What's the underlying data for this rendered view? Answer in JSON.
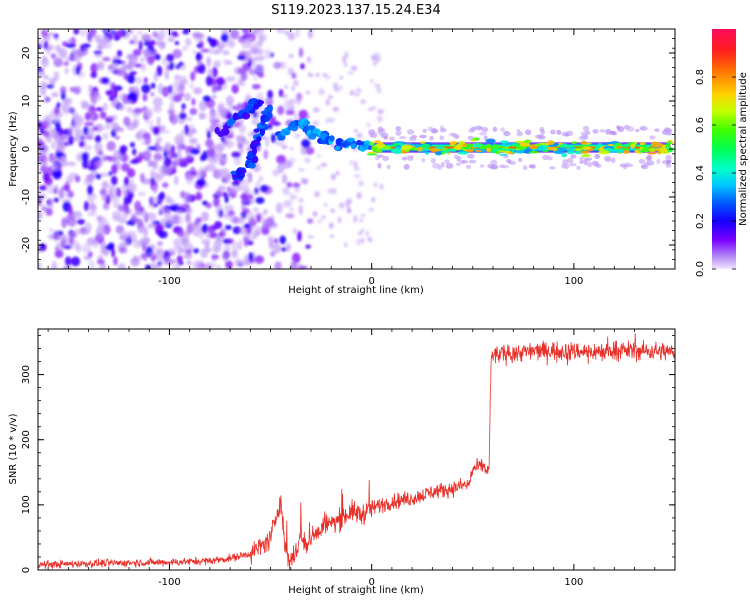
{
  "title": "S119.2023.137.15.24.E34",
  "colors": {
    "snr_line": "#e8302a",
    "spectro_bg": "#ffffff",
    "axis": "#000000"
  },
  "chart_data": [
    {
      "type": "heatmap",
      "name": "spectrogram",
      "xlabel": "Height of straight line (km)",
      "ylabel": "Frequency (Hz)",
      "xlim": [
        -165,
        150
      ],
      "ylim": [
        -25,
        25
      ],
      "xticks": [
        -100,
        0,
        100
      ],
      "yticks": [
        -20,
        -10,
        0,
        10,
        20
      ],
      "colorbar": {
        "label": "Normalized spectral amplitude",
        "range": [
          0,
          1
        ],
        "ticks": [
          "0.0",
          "0.2",
          "0.4",
          "0.6",
          "0.8"
        ],
        "colormap": "gist_rainbow_r"
      },
      "features": [
        {
          "kind": "noise",
          "x_range": [
            -165,
            -30
          ],
          "f_range": [
            -25,
            25
          ]
        },
        {
          "kind": "chirp_up",
          "points": [
            [
              -68,
              -6
            ],
            [
              -60,
              -3
            ],
            [
              -55,
              4
            ],
            [
              -50,
              9
            ]
          ]
        },
        {
          "kind": "chirp_down",
          "points": [
            [
              -75,
              3
            ],
            [
              -62,
              8
            ],
            [
              -55,
              10
            ]
          ]
        },
        {
          "kind": "converge",
          "points": [
            [
              -45,
              3
            ],
            [
              -35,
              6
            ],
            [
              -28,
              3
            ],
            [
              -15,
              1
            ],
            [
              0,
              0.5
            ]
          ]
        },
        {
          "kind": "steady_line",
          "x_range": [
            0,
            148
          ],
          "freq": 0.3
        }
      ]
    },
    {
      "type": "line",
      "name": "snr",
      "xlabel": "Height of straight line (km)",
      "ylabel": "SNR (10 * v/v)",
      "xlim": [
        -165,
        150
      ],
      "ylim": [
        0,
        370
      ],
      "xticks": [
        -100,
        0,
        100
      ],
      "yticks": [
        0,
        100,
        200,
        300
      ],
      "series": [
        {
          "x": [
            -165,
            -140,
            -120,
            -100,
            -80,
            -70,
            -60,
            -55,
            -50,
            -45,
            -43,
            -41,
            -38,
            -35,
            -32,
            -29,
            -26,
            -23,
            -20,
            -15,
            -10,
            -5,
            0,
            10,
            20,
            30,
            40,
            45,
            48,
            50,
            55,
            58,
            59,
            60,
            70,
            80,
            90,
            100,
            110,
            120,
            130,
            140,
            150
          ],
          "y": [
            8,
            10,
            11,
            12,
            14,
            18,
            25,
            35,
            48,
            110,
            40,
            15,
            20,
            55,
            30,
            60,
            55,
            75,
            70,
            80,
            90,
            85,
            95,
            105,
            110,
            120,
            125,
            130,
            130,
            155,
            160,
            150,
            320,
            330,
            333,
            336,
            337,
            336,
            335,
            338,
            337,
            336,
            335
          ]
        }
      ]
    }
  ]
}
